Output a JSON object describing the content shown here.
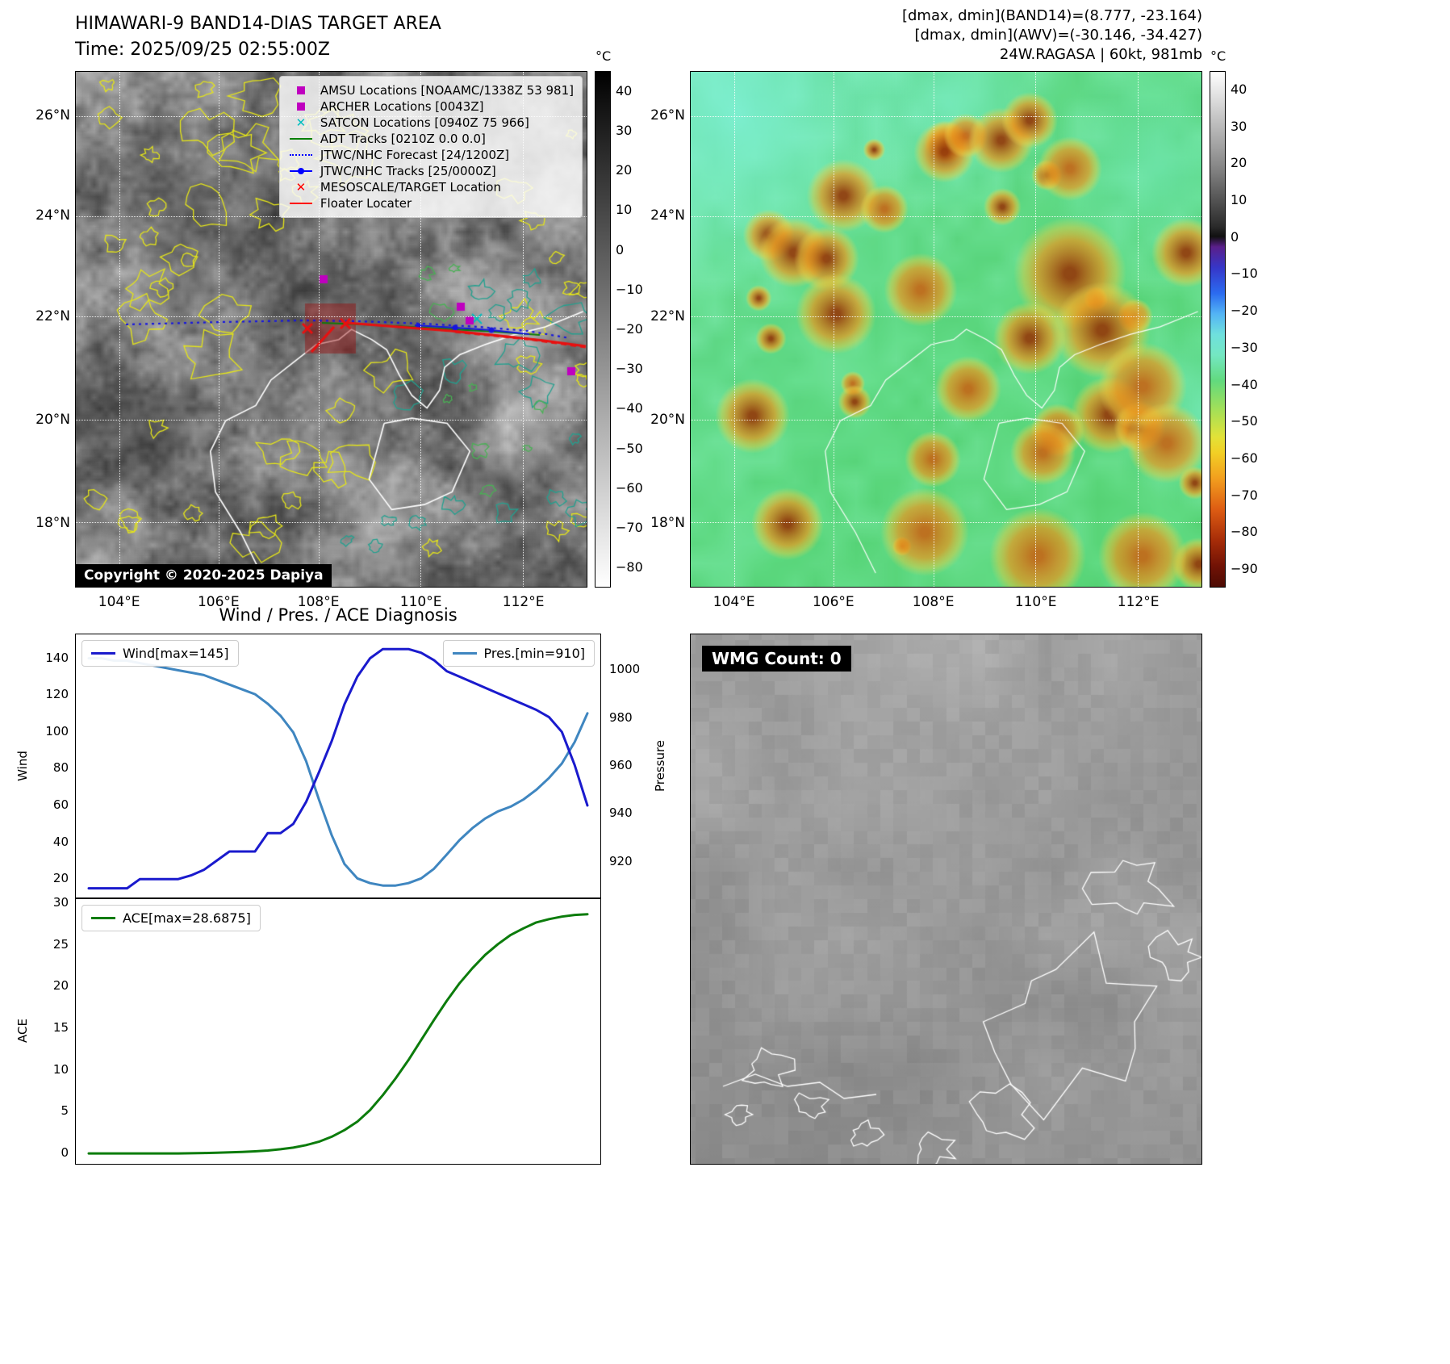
{
  "band14": {
    "title": "HIMAWARI-9 BAND14-DIAS TARGET AREA",
    "time_line": "Time: 2025/09/25 02:55:00Z",
    "copyright": "Copyright © 2020-2025 Dapiya",
    "colorbar_unit": "°C",
    "colorbar_ticks": [
      "40",
      "30",
      "20",
      "10",
      "0",
      "−10",
      "−20",
      "−30",
      "−40",
      "−50",
      "−60",
      "−70",
      "−80"
    ],
    "legend": [
      {
        "label": "AMSU Locations [NOAAMC/1338Z 53 981]",
        "marker": "square",
        "color": "#bf00bf"
      },
      {
        "label": "ARCHER Locations [0043Z]",
        "marker": "square",
        "color": "#bf00bf"
      },
      {
        "label": "SATCON Locations [0940Z 75 966]",
        "marker": "x",
        "color": "#00bfbf"
      },
      {
        "label": "ADT Tracks [0210Z 0.0 0.0]",
        "marker": "line",
        "color": "#008000"
      },
      {
        "label": "JTWC/NHC Forecast [24/1200Z]",
        "marker": "dotted",
        "color": "#0000ff"
      },
      {
        "label": "JTWC/NHC Tracks [25/0000Z]",
        "marker": "linedot",
        "color": "#0000ff"
      },
      {
        "label": "MESOSCALE/TARGET Location",
        "marker": "x",
        "color": "#ff0000"
      },
      {
        "label": "Floater Locater",
        "marker": "line",
        "color": "#ff0000"
      }
    ]
  },
  "awv": {
    "header_line1": "[dmax, dmin](BAND14)=(8.777, -23.164)",
    "header_line2": "[dmax, dmin](AWV)=(-30.146, -34.427)",
    "header_line3": "24W.RAGASA | 60kt, 981mb",
    "colorbar_unit": "°C",
    "colorbar_ticks": [
      "40",
      "30",
      "20",
      "10",
      "0",
      "−10",
      "−20",
      "−30",
      "−40",
      "−50",
      "−60",
      "−70",
      "−80",
      "−90"
    ]
  },
  "map_ticks": {
    "lat": [
      "26°N",
      "24°N",
      "22°N",
      "20°N",
      "18°N"
    ],
    "lon": [
      "104°E",
      "106°E",
      "108°E",
      "110°E",
      "112°E"
    ]
  },
  "wmg": {
    "count_label": "WMG Count: 0"
  },
  "chart_data": [
    {
      "type": "line",
      "title": "Wind / Pres. / ACE Diagnosis",
      "ylabel_left": "Wind",
      "ylabel_right": "Pressure",
      "ylim_left": [
        10,
        153
      ],
      "ylim_right": [
        905,
        1015
      ],
      "yticks_left": [
        20,
        40,
        60,
        80,
        100,
        120,
        140
      ],
      "yticks_right": [
        920,
        940,
        960,
        980,
        1000
      ],
      "legend_position": "top-left and top-right",
      "series": [
        {
          "name": "Wind[max=145]",
          "axis": "left",
          "color": "#1a1acd",
          "values": [
            15,
            15,
            15,
            15,
            20,
            20,
            20,
            20,
            22,
            25,
            30,
            35,
            35,
            35,
            45,
            45,
            50,
            62,
            78,
            95,
            115,
            130,
            140,
            145,
            145,
            145,
            143,
            139,
            133,
            130,
            127,
            124,
            121,
            118,
            115,
            112,
            108,
            100,
            82,
            60
          ]
        },
        {
          "name": "Pres.[min=910]",
          "axis": "right",
          "color": "#3f86c0",
          "values": [
            1005,
            1005,
            1004,
            1004,
            1003,
            1002,
            1001,
            1000,
            999,
            998,
            996,
            994,
            992,
            990,
            986,
            981,
            974,
            962,
            946,
            931,
            919,
            913,
            911,
            910,
            910,
            911,
            913,
            917,
            923,
            929,
            934,
            938,
            941,
            943,
            946,
            950,
            955,
            961,
            970,
            982
          ]
        }
      ]
    },
    {
      "type": "line",
      "ylabel": "ACE",
      "ylim": [
        -1.25,
        30.5
      ],
      "yticks": [
        0,
        5,
        10,
        15,
        20,
        25,
        30
      ],
      "legend_position": "top-left",
      "series": [
        {
          "name": "ACE[max=28.6875]",
          "color": "#0c7c0c",
          "values": [
            0,
            0,
            0,
            0,
            0,
            0,
            0,
            0,
            0.02,
            0.05,
            0.08,
            0.12,
            0.18,
            0.25,
            0.35,
            0.5,
            0.7,
            1.0,
            1.4,
            2.0,
            2.8,
            3.8,
            5.2,
            7.0,
            9.0,
            11.2,
            13.6,
            16.0,
            18.3,
            20.4,
            22.2,
            23.8,
            25.1,
            26.2,
            27.0,
            27.7,
            28.1,
            28.4,
            28.6,
            28.6875
          ]
        }
      ]
    }
  ]
}
